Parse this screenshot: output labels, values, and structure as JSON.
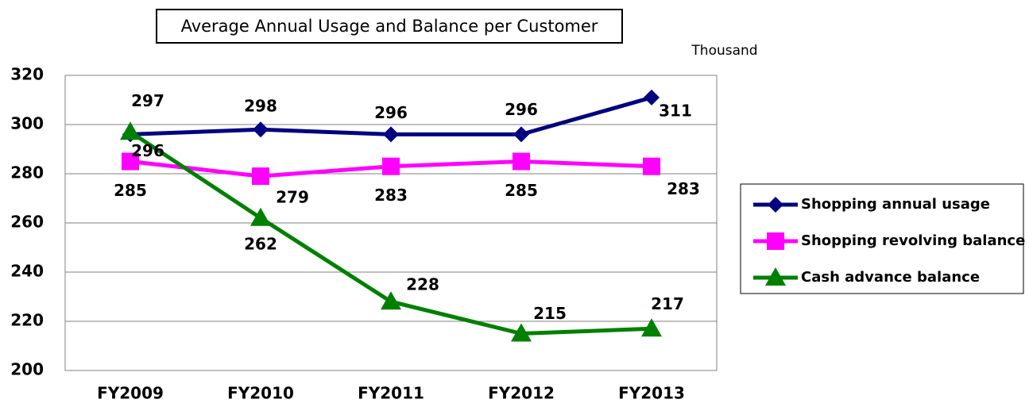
{
  "chart_data": {
    "type": "line",
    "title": "Average Annual Usage and Balance per Customer",
    "unit_label": "Thousand",
    "categories": [
      "FY2009",
      "FY2010",
      "FY2011",
      "FY2012",
      "FY2013"
    ],
    "series": [
      {
        "name": "Shopping annual usage",
        "color": "#000080",
        "marker": "diamond",
        "values": [
          296,
          298,
          296,
          296,
          311
        ]
      },
      {
        "name": "Shopping revolving balance",
        "color": "#ff00ff",
        "marker": "square",
        "values": [
          285,
          279,
          283,
          285,
          283
        ]
      },
      {
        "name": "Cash advance balance",
        "color": "#008000",
        "marker": "triangle",
        "values": [
          297,
          262,
          228,
          215,
          217
        ]
      }
    ],
    "ylim": [
      200,
      320
    ],
    "yticks": [
      200,
      220,
      240,
      260,
      280,
      300,
      320
    ],
    "grid": true,
    "legend": "right"
  }
}
